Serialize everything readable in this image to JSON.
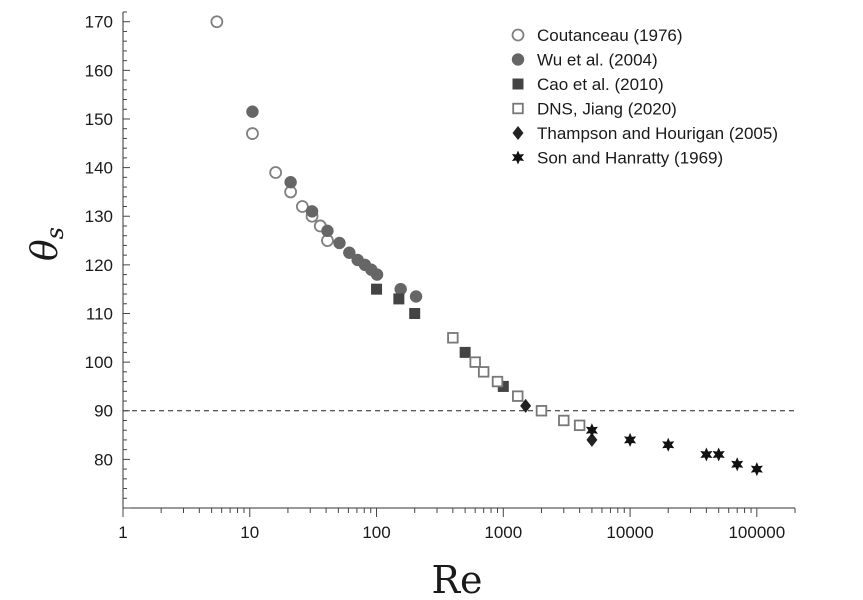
{
  "chart_data": {
    "type": "scatter",
    "title": "",
    "xlabel": "Re",
    "ylabel_symbol": "θ",
    "ylabel_subscript": "s",
    "x_scale": "log",
    "xlim": [
      1,
      200000
    ],
    "ylim": [
      70,
      172
    ],
    "grid": false,
    "legend_position": "top-right",
    "x_ticks": [
      1,
      10,
      100,
      1000,
      10000,
      100000
    ],
    "x_tick_labels": [
      "1",
      "10",
      "100",
      "1000",
      "10000",
      "100000"
    ],
    "y_ticks": [
      80,
      90,
      100,
      110,
      120,
      130,
      140,
      150,
      160,
      170
    ],
    "y_tick_labels": [
      "80",
      "90",
      "100",
      "110",
      "120",
      "130",
      "140",
      "150",
      "160",
      "170"
    ],
    "reference_line": {
      "y": 90,
      "style": "dashed"
    },
    "series": [
      {
        "name": "Coutanceau (1976)",
        "marker": "circle-open",
        "color": "#808080",
        "points": [
          [
            5.5,
            170
          ],
          [
            10.5,
            147
          ],
          [
            16,
            139
          ],
          [
            21,
            135
          ],
          [
            26,
            132
          ],
          [
            31,
            130
          ],
          [
            36,
            128
          ],
          [
            41,
            125
          ]
        ]
      },
      {
        "name": "Wu et al. (2004)",
        "marker": "circle-filled",
        "color": "#666666",
        "points": [
          [
            10.5,
            151.5
          ],
          [
            21,
            137
          ],
          [
            31,
            131
          ],
          [
            41,
            127
          ],
          [
            51,
            124.5
          ],
          [
            61,
            122.5
          ],
          [
            71,
            121
          ],
          [
            81,
            120
          ],
          [
            91,
            119
          ],
          [
            101,
            118
          ],
          [
            155,
            115
          ],
          [
            205,
            113.5
          ]
        ]
      },
      {
        "name": "Cao et al. (2010)",
        "marker": "square-filled",
        "color": "#444444",
        "points": [
          [
            100,
            115
          ],
          [
            150,
            113
          ],
          [
            200,
            110
          ],
          [
            500,
            102
          ],
          [
            1000,
            95
          ]
        ]
      },
      {
        "name": "DNS, Jiang (2020)",
        "marker": "square-open",
        "color": "#777777",
        "points": [
          [
            400,
            105
          ],
          [
            600,
            100
          ],
          [
            700,
            98
          ],
          [
            900,
            96
          ],
          [
            1300,
            93
          ],
          [
            2000,
            90
          ],
          [
            3000,
            88
          ],
          [
            4000,
            87
          ]
        ]
      },
      {
        "name": "Thampson and Hourigan (2005)",
        "marker": "diamond-filled",
        "color": "#222222",
        "points": [
          [
            1500,
            91
          ],
          [
            5000,
            84
          ]
        ]
      },
      {
        "name": "Son and Hanratty (1969)",
        "marker": "star-filled",
        "color": "#111111",
        "points": [
          [
            5000,
            86
          ],
          [
            10000,
            84
          ],
          [
            20000,
            83
          ],
          [
            40000,
            81
          ],
          [
            50000,
            81
          ],
          [
            70000,
            79
          ],
          [
            100000,
            78
          ]
        ]
      }
    ]
  }
}
